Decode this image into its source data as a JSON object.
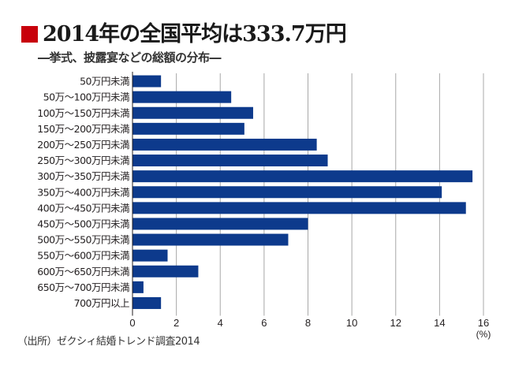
{
  "header": {
    "title": "2014年の全国平均は333.7万円",
    "subtitle": "―挙式、披露宴などの総額の分布―",
    "accent_color": "#c8000b"
  },
  "footer": {
    "source": "（出所）ゼクシィ結婚トレンド調査2014"
  },
  "chart_data": {
    "type": "bar",
    "orientation": "horizontal",
    "title": "2014年の全国平均は333.7万円",
    "subtitle": "―挙式、披露宴などの総額の分布―",
    "xlabel": "(%)",
    "ylabel": "",
    "xlim": [
      0,
      16
    ],
    "xticks": [
      0,
      2,
      4,
      6,
      8,
      10,
      12,
      14,
      16
    ],
    "grid": true,
    "bar_color": "#0d3a8c",
    "categories": [
      "50万円未満",
      "50万～100万円未満",
      "100万～150万円未満",
      "150万～200万円未満",
      "200万～250万円未満",
      "250万～300万円未満",
      "300万～350万円未満",
      "350万～400万円未満",
      "400万～450万円未満",
      "450万～500万円未満",
      "500万～550万円未満",
      "550万～600万円未満",
      "600万～650万円未満",
      "650万～700万円未満",
      "700万円以上"
    ],
    "values": [
      1.3,
      4.5,
      5.5,
      5.1,
      8.4,
      8.9,
      15.5,
      14.1,
      15.2,
      8.0,
      7.1,
      1.6,
      3.0,
      0.5,
      1.3
    ],
    "source": "（出所）ゼクシィ結婚トレンド調査2014"
  }
}
